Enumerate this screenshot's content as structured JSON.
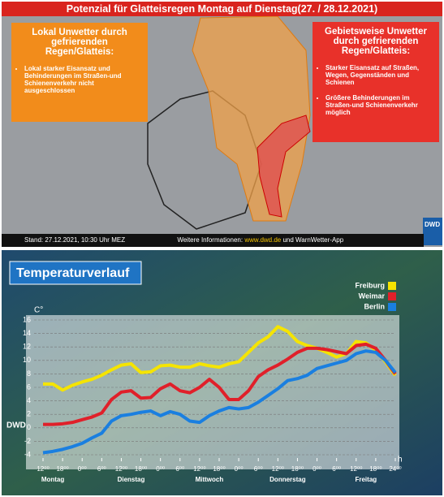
{
  "map_panel": {
    "title": "Potenzial für Glatteisregen Montag auf Dienstag(27. / 28.12.2021)",
    "left_box": {
      "heading": "Lokal Unwetter durch gefrierenden Regen/Glatteis:",
      "bullets": [
        "Lokal starker Eisansatz und Behinderungen im Straßen-und Schienenverkehr nicht ausgeschlossen"
      ]
    },
    "right_box": {
      "heading": "Gebietsweise Unwetter durch gefrierenden Regen/Glatteis:",
      "bullets": [
        "Starker Eisansatz auf Straßen, Wegen, Gegenständen und Schienen",
        "Größere Behinderungen im Straßen-und Schienenverkehr möglich"
      ]
    },
    "footer": {
      "stand": "Stand: 27.12.2021, 10:30 Uhr MEZ",
      "more_info": "Weitere Informationen:",
      "link": "www.dwd.de",
      "app": "und WarnWetter-App"
    },
    "logo": "DWD"
  },
  "chart_data": {
    "type": "line",
    "title": "Temperaturverlauf",
    "y_label": "C°",
    "x_label": "h",
    "logo": "DWD",
    "x": [
      0,
      3,
      6,
      9,
      12,
      15,
      18,
      21,
      24,
      27,
      30,
      33,
      36,
      39,
      42,
      45,
      48,
      51,
      54,
      57,
      60,
      63,
      66,
      69,
      72,
      75,
      78,
      81,
      84,
      87,
      90,
      93,
      96,
      99,
      102,
      105,
      108
    ],
    "xlim": [
      0,
      108
    ],
    "xticks": [
      {
        "value": 0,
        "label": "12⁰⁰"
      },
      {
        "value": 6,
        "label": "18⁰⁰"
      },
      {
        "value": 12,
        "label": "0⁰⁰"
      },
      {
        "value": 18,
        "label": "6⁰⁰"
      },
      {
        "value": 24,
        "label": "12⁰⁰"
      },
      {
        "value": 30,
        "label": "18⁰⁰"
      },
      {
        "value": 36,
        "label": "0⁰⁰"
      },
      {
        "value": 42,
        "label": "6⁰⁰"
      },
      {
        "value": 48,
        "label": "12⁰⁰"
      },
      {
        "value": 54,
        "label": "18⁰⁰"
      },
      {
        "value": 60,
        "label": "0⁰⁰"
      },
      {
        "value": 66,
        "label": "6⁰⁰"
      },
      {
        "value": 72,
        "label": "12⁰⁰"
      },
      {
        "value": 78,
        "label": "18⁰⁰"
      },
      {
        "value": 84,
        "label": "0⁰⁰"
      },
      {
        "value": 90,
        "label": "6⁰⁰"
      },
      {
        "value": 96,
        "label": "12⁰⁰"
      },
      {
        "value": 102,
        "label": "18⁰⁰"
      },
      {
        "value": 108,
        "label": "24⁰⁰"
      }
    ],
    "day_labels": [
      {
        "value": 3,
        "label": "Montag"
      },
      {
        "value": 27,
        "label": "Dienstag"
      },
      {
        "value": 51,
        "label": "Mittwoch"
      },
      {
        "value": 75,
        "label": "Donnerstag"
      },
      {
        "value": 99,
        "label": "Freitag"
      }
    ],
    "ylim": [
      -4,
      16
    ],
    "yticks": [
      -4,
      -2,
      0,
      2,
      4,
      6,
      8,
      10,
      12,
      14,
      16
    ],
    "grid": true,
    "series": [
      {
        "name": "Freiburg",
        "color": "#f5e400",
        "values": [
          6.5,
          6.5,
          5.6,
          6.3,
          6.8,
          7.2,
          7.8,
          8.6,
          9.3,
          9.5,
          8.2,
          8.3,
          9.2,
          9.3,
          9.0,
          9.0,
          9.5,
          9.2,
          9.0,
          9.5,
          9.8,
          11.2,
          12.6,
          13.5,
          15.0,
          14.3,
          12.8,
          12.2,
          11.8,
          11.2,
          10.5,
          11.0,
          12.8,
          12.6,
          11.5,
          9.8,
          7.8
        ]
      },
      {
        "name": "Weimar",
        "color": "#e0202a",
        "values": [
          0.5,
          0.5,
          0.6,
          0.8,
          1.2,
          1.6,
          2.2,
          4.2,
          5.3,
          5.5,
          4.4,
          4.5,
          5.8,
          6.5,
          5.5,
          5.2,
          6.0,
          7.2,
          6.0,
          4.2,
          4.2,
          5.5,
          7.6,
          8.6,
          9.3,
          10.2,
          11.2,
          11.8,
          11.8,
          11.6,
          11.3,
          11.0,
          12.2,
          12.4,
          11.8,
          10.0,
          8.0
        ]
      },
      {
        "name": "Berlin",
        "color": "#1a7fe0",
        "values": [
          -3.7,
          -3.5,
          -3.2,
          -2.8,
          -2.3,
          -1.5,
          -0.8,
          1.0,
          1.8,
          2.0,
          2.3,
          2.5,
          1.8,
          2.4,
          2.0,
          1.0,
          0.8,
          1.8,
          2.5,
          3.0,
          2.8,
          3.0,
          3.8,
          4.8,
          5.8,
          7.0,
          7.3,
          7.8,
          8.8,
          9.2,
          9.6,
          10.0,
          11.0,
          11.4,
          11.2,
          10.0,
          8.2
        ]
      }
    ]
  }
}
